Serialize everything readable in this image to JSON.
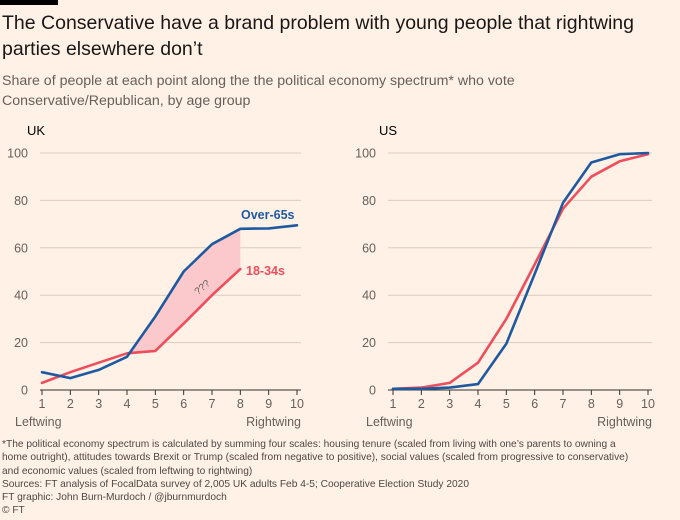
{
  "header": {
    "title": "The Conservative have a brand problem with young people that rightwing parties elsewhere don’t",
    "subtitle": "Share of people at each point along the the political economy spectrum* who vote Conservative/Republican, by age group"
  },
  "colors": {
    "over65": "#1f5aa0",
    "young": "#ee4e5c",
    "gap_fill": "#fbc9cc",
    "grid": "#d9cdc2",
    "axis": "#33302e"
  },
  "chart_data": [
    {
      "type": "line",
      "panel": "UK",
      "x": [
        1,
        2,
        3,
        4,
        5,
        6,
        7,
        8,
        9,
        10
      ],
      "xlim": [
        1,
        10
      ],
      "ylim": [
        0,
        100
      ],
      "yticks": [
        0,
        20,
        40,
        60,
        80,
        100
      ],
      "xlabel_left": "Leftwing",
      "xlabel_right": "Rightwing",
      "grid": true,
      "series": [
        {
          "name": "Over-65s",
          "x": [
            1,
            2,
            3,
            4,
            5,
            6,
            7,
            8,
            9,
            10
          ],
          "values": [
            7.5,
            5,
            8.5,
            14,
            31,
            50,
            61.5,
            68,
            68.2,
            69.5
          ]
        },
        {
          "name": "18-34s",
          "x": [
            1,
            2,
            3,
            4,
            5,
            6,
            7,
            8
          ],
          "values": [
            3,
            7.5,
            11.5,
            15.5,
            16.5,
            28,
            40,
            51
          ]
        }
      ],
      "shaded_gap": {
        "x_from": 4,
        "x_to": 8,
        "label": "???"
      }
    },
    {
      "type": "line",
      "panel": "US",
      "x": [
        1,
        2,
        3,
        4,
        5,
        6,
        7,
        8,
        9,
        10
      ],
      "xlim": [
        1,
        10
      ],
      "ylim": [
        0,
        100
      ],
      "yticks": [
        0,
        20,
        40,
        60,
        80,
        100
      ],
      "xlabel_left": "Leftwing",
      "xlabel_right": "Rightwing",
      "grid": true,
      "series": [
        {
          "name": "Over-65s",
          "x": [
            1,
            2,
            3,
            4,
            5,
            6,
            7,
            8,
            9,
            10
          ],
          "values": [
            0.5,
            0.5,
            1,
            2.5,
            19.5,
            49,
            79,
            96,
            99.5,
            100
          ]
        },
        {
          "name": "18-34s",
          "x": [
            1,
            2,
            3,
            4,
            5,
            6,
            7,
            8,
            9,
            10
          ],
          "values": [
            0.5,
            1,
            3,
            11.5,
            30,
            53,
            76.5,
            90,
            96.5,
            99.5
          ]
        }
      ]
    }
  ],
  "footer": {
    "note_line1": "*The political economy spectrum is calculated by summing four scales: housing tenure (scaled from living with one’s parents to owning a",
    "note_line2": "home outright), attitudes towards Brexit or Trump  (scaled from negative to positive), social values (scaled from progressive to conservative)",
    "note_line3": "and economic values (scaled from leftwing to rightwing)",
    "sources": "Sources: FT analysis of FocalData survey of 2,005 UK adults Feb 4-5; Cooperative Election Study 2020",
    "credit": "FT graphic: John Burn-Murdoch / @jburnmurdoch",
    "copyright": "© FT"
  }
}
